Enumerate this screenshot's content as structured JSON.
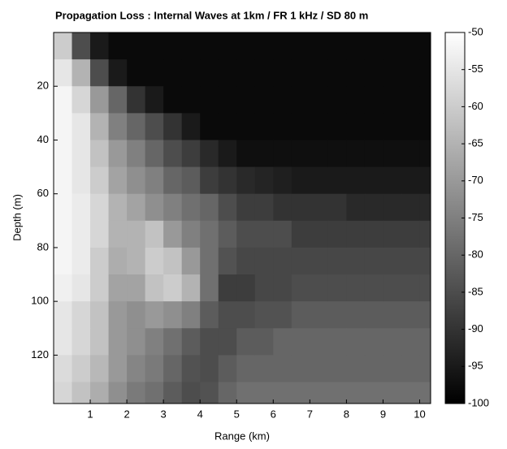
{
  "chart_data": {
    "type": "heatmap",
    "title": "Propagation Loss : Internal Waves at 1km / FR 1 kHz / SD 80 m",
    "x_label": "Range (km)",
    "y_label": "Depth (m)",
    "xlim": [
      0,
      10.3
    ],
    "ylim": [
      0,
      138
    ],
    "y_inverted": true,
    "xticks": [
      1,
      2,
      3,
      4,
      5,
      6,
      7,
      8,
      9,
      10
    ],
    "yticks": [
      20,
      40,
      60,
      80,
      100,
      120
    ],
    "clim": [
      -100,
      -50
    ],
    "cticks": [
      -50,
      -55,
      -60,
      -65,
      -70,
      -75,
      -80,
      -85,
      -90,
      -95,
      -100
    ],
    "x_edges": [
      0,
      0.5,
      1,
      1.5,
      2,
      2.5,
      3,
      3.5,
      4,
      4.5,
      5,
      5.5,
      6,
      6.5,
      7,
      7.5,
      8,
      8.5,
      9,
      9.5,
      10,
      10.3
    ],
    "y_edges": [
      0,
      10,
      20,
      30,
      40,
      50,
      60,
      70,
      80,
      90,
      100,
      110,
      120,
      130,
      138
    ],
    "z": [
      [
        -60,
        -85,
        -95,
        -98,
        -98,
        -98,
        -98,
        -98,
        -98,
        -98,
        -98,
        -98,
        -98,
        -98,
        -98,
        -98,
        -98,
        -98,
        -98,
        -98,
        -98
      ],
      [
        -55,
        -65,
        -85,
        -95,
        -98,
        -98,
        -98,
        -98,
        -98,
        -98,
        -98,
        -98,
        -98,
        -98,
        -98,
        -98,
        -98,
        -98,
        -98,
        -98,
        -98
      ],
      [
        -52,
        -58,
        -70,
        -80,
        -90,
        -95,
        -98,
        -98,
        -98,
        -98,
        -98,
        -98,
        -98,
        -98,
        -98,
        -98,
        -98,
        -98,
        -98,
        -98,
        -98
      ],
      [
        -52,
        -55,
        -65,
        -75,
        -80,
        -85,
        -90,
        -95,
        -98,
        -98,
        -98,
        -98,
        -98,
        -98,
        -98,
        -98,
        -98,
        -98,
        -98,
        -98,
        -98
      ],
      [
        -52,
        -55,
        -62,
        -70,
        -75,
        -80,
        -85,
        -88,
        -92,
        -95,
        -97,
        -97,
        -97,
        -97,
        -97,
        -97,
        -97,
        -97,
        -97,
        -97,
        -97
      ],
      [
        -52,
        -55,
        -60,
        -68,
        -72,
        -75,
        -80,
        -82,
        -88,
        -90,
        -92,
        -93,
        -94,
        -95,
        -95,
        -95,
        -95,
        -95,
        -95,
        -95,
        -95
      ],
      [
        -52,
        -54,
        -58,
        -65,
        -68,
        -72,
        -75,
        -78,
        -80,
        -85,
        -88,
        -88,
        -90,
        -90,
        -90,
        -90,
        -92,
        -92,
        -92,
        -92,
        -92
      ],
      [
        -52,
        -54,
        -58,
        -65,
        -65,
        -62,
        -70,
        -75,
        -78,
        -82,
        -85,
        -85,
        -85,
        -88,
        -88,
        -88,
        -88,
        -88,
        -88,
        -88,
        -88
      ],
      [
        -52,
        -54,
        -60,
        -66,
        -65,
        -60,
        -62,
        -70,
        -78,
        -84,
        -86,
        -86,
        -86,
        -86,
        -86,
        -86,
        -86,
        -86,
        -86,
        -86,
        -86
      ],
      [
        -53,
        -55,
        -60,
        -68,
        -68,
        -62,
        -60,
        -65,
        -78,
        -88,
        -88,
        -86,
        -86,
        -85,
        -85,
        -85,
        -85,
        -85,
        -85,
        -85,
        -85
      ],
      [
        -55,
        -58,
        -62,
        -70,
        -72,
        -70,
        -72,
        -75,
        -82,
        -85,
        -85,
        -84,
        -84,
        -82,
        -82,
        -82,
        -82,
        -82,
        -82,
        -82,
        -82
      ],
      [
        -55,
        -58,
        -62,
        -70,
        -72,
        -75,
        -78,
        -82,
        -85,
        -85,
        -82,
        -82,
        -80,
        -80,
        -80,
        -80,
        -80,
        -80,
        -80,
        -80,
        -80
      ],
      [
        -57,
        -60,
        -64,
        -70,
        -74,
        -76,
        -80,
        -84,
        -85,
        -82,
        -80,
        -80,
        -80,
        -80,
        -80,
        -80,
        -80,
        -80,
        -80,
        -80,
        -80
      ],
      [
        -58,
        -62,
        -66,
        -72,
        -76,
        -78,
        -82,
        -85,
        -84,
        -80,
        -78,
        -78,
        -78,
        -78,
        -78,
        -78,
        -78,
        -78,
        -78,
        -78,
        -78
      ]
    ]
  }
}
